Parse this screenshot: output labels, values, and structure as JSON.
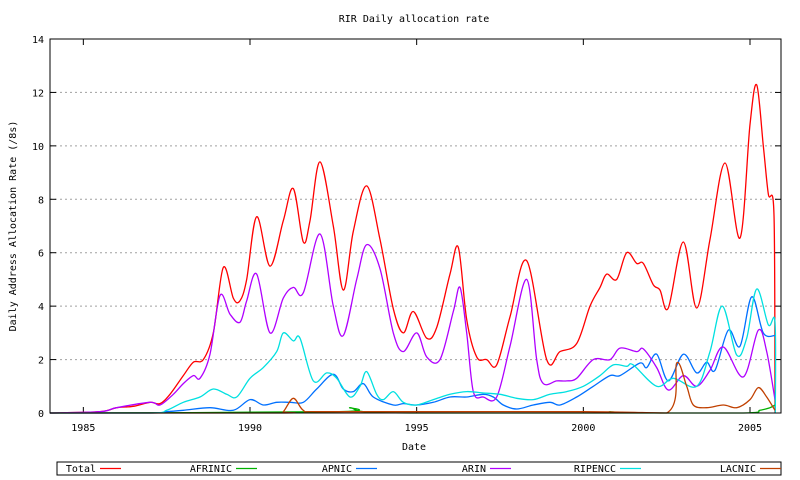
{
  "chart_data": {
    "type": "line",
    "title": "RIR Daily allocation rate",
    "xlabel": "Date",
    "ylabel": "Daily Address Allocation Rate (/8s)",
    "xlim": [
      1984.0,
      2005.93
    ],
    "ylim": [
      0,
      14
    ],
    "xticks": [
      1985,
      1990,
      1995,
      2000,
      2005
    ],
    "yticks": [
      0,
      2,
      4,
      6,
      8,
      10,
      12,
      14
    ],
    "grid": "horizontal dotted",
    "legend_placement": "bottom",
    "series": [
      {
        "name": "Total",
        "color": "#ff0000",
        "points": [
          [
            1984,
            0
          ],
          [
            1985.5,
            0.05
          ],
          [
            1986,
            0.2
          ],
          [
            1986.5,
            0.25
          ],
          [
            1987,
            0.4
          ],
          [
            1987.3,
            0.35
          ],
          [
            1987.6,
            0.7
          ],
          [
            1988,
            1.4
          ],
          [
            1988.3,
            1.9
          ],
          [
            1988.6,
            2.0
          ],
          [
            1988.9,
            3.0
          ],
          [
            1989.2,
            5.45
          ],
          [
            1989.5,
            4.3
          ],
          [
            1989.7,
            4.2
          ],
          [
            1989.9,
            5.0
          ],
          [
            1990.2,
            7.35
          ],
          [
            1990.6,
            5.5
          ],
          [
            1991.0,
            7.2
          ],
          [
            1991.3,
            8.4
          ],
          [
            1991.6,
            6.4
          ],
          [
            1991.8,
            7.2
          ],
          [
            1992.1,
            9.4
          ],
          [
            1992.5,
            7.0
          ],
          [
            1992.8,
            4.6
          ],
          [
            1993.1,
            6.8
          ],
          [
            1993.5,
            8.5
          ],
          [
            1993.9,
            6.5
          ],
          [
            1994.3,
            3.9
          ],
          [
            1994.6,
            3.0
          ],
          [
            1994.9,
            3.8
          ],
          [
            1995.3,
            2.8
          ],
          [
            1995.6,
            3.2
          ],
          [
            1996.0,
            5.2
          ],
          [
            1996.25,
            6.2
          ],
          [
            1996.5,
            3.5
          ],
          [
            1996.8,
            2.1
          ],
          [
            1997.1,
            2.0
          ],
          [
            1997.4,
            1.8
          ],
          [
            1997.8,
            3.6
          ],
          [
            1998.3,
            5.7
          ],
          [
            1998.9,
            2.0
          ],
          [
            1999.3,
            2.3
          ],
          [
            1999.8,
            2.6
          ],
          [
            2000.2,
            4.0
          ],
          [
            2000.5,
            4.7
          ],
          [
            2000.7,
            5.2
          ],
          [
            2001.0,
            5.0
          ],
          [
            2001.3,
            6.0
          ],
          [
            2001.6,
            5.6
          ],
          [
            2001.8,
            5.6
          ],
          [
            2002.1,
            4.8
          ],
          [
            2002.3,
            4.6
          ],
          [
            2002.55,
            3.93
          ],
          [
            2003.0,
            6.4
          ],
          [
            2003.4,
            3.93
          ],
          [
            2003.8,
            6.5
          ],
          [
            2004.25,
            9.36
          ],
          [
            2004.7,
            6.55
          ],
          [
            2005.0,
            10.8
          ],
          [
            2005.2,
            12.28
          ],
          [
            2005.4,
            10.0
          ],
          [
            2005.55,
            8.2
          ],
          [
            2005.72,
            7.4
          ],
          [
            2005.75,
            0
          ]
        ]
      },
      {
        "name": "AFRINIC",
        "color": "#00b000",
        "points": [
          [
            1984,
            0
          ],
          [
            1992.5,
            0.05
          ],
          [
            1993.0,
            0.2
          ],
          [
            1993.4,
            0.05
          ],
          [
            1995,
            0
          ],
          [
            2000.5,
            0
          ],
          [
            2000.8,
            0.05
          ],
          [
            2001.1,
            0
          ],
          [
            2004.8,
            0
          ],
          [
            2005.3,
            0.1
          ],
          [
            2005.6,
            0.2
          ],
          [
            2005.75,
            0.3
          ]
        ]
      },
      {
        "name": "APNIC",
        "color": "#0070ff",
        "points": [
          [
            1984,
            0
          ],
          [
            1987,
            0
          ],
          [
            1987.5,
            0.05
          ],
          [
            1988,
            0.1
          ],
          [
            1988.8,
            0.2
          ],
          [
            1989.5,
            0.1
          ],
          [
            1990,
            0.5
          ],
          [
            1990.4,
            0.3
          ],
          [
            1990.8,
            0.4
          ],
          [
            1991.2,
            0.4
          ],
          [
            1991.6,
            0.4
          ],
          [
            1992,
            0.9
          ],
          [
            1992.5,
            1.45
          ],
          [
            1992.8,
            0.9
          ],
          [
            1993.1,
            0.8
          ],
          [
            1993.4,
            1.1
          ],
          [
            1993.7,
            0.6
          ],
          [
            1994.3,
            0.3
          ],
          [
            1994.6,
            0.35
          ],
          [
            1995,
            0.3
          ],
          [
            1995.5,
            0.4
          ],
          [
            1996,
            0.6
          ],
          [
            1996.5,
            0.6
          ],
          [
            1997,
            0.7
          ],
          [
            1997.3,
            0.6
          ],
          [
            1997.6,
            0.3
          ],
          [
            1998,
            0.15
          ],
          [
            1998.5,
            0.3
          ],
          [
            1999,
            0.4
          ],
          [
            1999.3,
            0.3
          ],
          [
            1999.8,
            0.6
          ],
          [
            2000.3,
            1.0
          ],
          [
            2000.8,
            1.4
          ],
          [
            2001.1,
            1.4
          ],
          [
            2001.7,
            1.87
          ],
          [
            2001.9,
            1.7
          ],
          [
            2002.2,
            2.2
          ],
          [
            2002.55,
            1.2
          ],
          [
            2003.0,
            2.2
          ],
          [
            2003.4,
            1.5
          ],
          [
            2003.7,
            1.9
          ],
          [
            2003.95,
            1.6
          ],
          [
            2004.35,
            3.1
          ],
          [
            2004.7,
            2.5
          ],
          [
            2005.05,
            4.35
          ],
          [
            2005.4,
            3.0
          ],
          [
            2005.75,
            2.9
          ]
        ]
      },
      {
        "name": "ARIN",
        "color": "#b000ff",
        "points": [
          [
            1984,
            0
          ],
          [
            1985.5,
            0.05
          ],
          [
            1986,
            0.2
          ],
          [
            1987,
            0.4
          ],
          [
            1987.3,
            0.3
          ],
          [
            1987.7,
            0.7
          ],
          [
            1988,
            1.1
          ],
          [
            1988.3,
            1.4
          ],
          [
            1988.5,
            1.3
          ],
          [
            1988.8,
            2.2
          ],
          [
            1989.1,
            4.4
          ],
          [
            1989.4,
            3.7
          ],
          [
            1989.7,
            3.4
          ],
          [
            1989.9,
            4.2
          ],
          [
            1990.2,
            5.2
          ],
          [
            1990.6,
            3.0
          ],
          [
            1991.0,
            4.3
          ],
          [
            1991.3,
            4.7
          ],
          [
            1991.6,
            4.5
          ],
          [
            1992.1,
            6.7
          ],
          [
            1992.5,
            4.0
          ],
          [
            1992.8,
            2.9
          ],
          [
            1993.2,
            5.0
          ],
          [
            1993.5,
            6.3
          ],
          [
            1993.9,
            5.4
          ],
          [
            1994.3,
            3.0
          ],
          [
            1994.6,
            2.3
          ],
          [
            1995.0,
            3.0
          ],
          [
            1995.3,
            2.1
          ],
          [
            1995.7,
            2.0
          ],
          [
            1996.1,
            3.8
          ],
          [
            1996.3,
            4.7
          ],
          [
            1996.5,
            3.0
          ],
          [
            1996.7,
            0.8
          ],
          [
            1997.0,
            0.6
          ],
          [
            1997.4,
            0.6
          ],
          [
            1997.8,
            2.5
          ],
          [
            1998.3,
            5.0
          ],
          [
            1998.6,
            2.0
          ],
          [
            1998.8,
            1.1
          ],
          [
            1999.2,
            1.2
          ],
          [
            1999.5,
            1.2
          ],
          [
            1999.8,
            1.3
          ],
          [
            2000.3,
            2.0
          ],
          [
            2000.8,
            2.0
          ],
          [
            2001.1,
            2.43
          ],
          [
            2001.6,
            2.3
          ],
          [
            2001.8,
            2.4
          ],
          [
            2002.2,
            1.7
          ],
          [
            2002.55,
            0.86
          ],
          [
            2003.0,
            1.4
          ],
          [
            2003.4,
            1.0
          ],
          [
            2003.8,
            1.6
          ],
          [
            2004.2,
            2.47
          ],
          [
            2004.8,
            1.35
          ],
          [
            2005.25,
            3.1
          ],
          [
            2005.5,
            2.3
          ],
          [
            2005.75,
            0.5
          ]
        ]
      },
      {
        "name": "RIPENCC",
        "color": "#00e0e0",
        "points": [
          [
            1984,
            0
          ],
          [
            1987,
            0
          ],
          [
            1987.5,
            0.1
          ],
          [
            1988,
            0.4
          ],
          [
            1988.5,
            0.6
          ],
          [
            1988.9,
            0.9
          ],
          [
            1989.3,
            0.7
          ],
          [
            1989.6,
            0.6
          ],
          [
            1990,
            1.3
          ],
          [
            1990.4,
            1.7
          ],
          [
            1990.8,
            2.3
          ],
          [
            1991.0,
            3.0
          ],
          [
            1991.3,
            2.7
          ],
          [
            1991.5,
            2.8
          ],
          [
            1991.9,
            1.2
          ],
          [
            1992.3,
            1.5
          ],
          [
            1992.6,
            1.3
          ],
          [
            1993.0,
            0.6
          ],
          [
            1993.3,
            1.0
          ],
          [
            1993.5,
            1.55
          ],
          [
            1993.8,
            0.7
          ],
          [
            1994.0,
            0.5
          ],
          [
            1994.3,
            0.8
          ],
          [
            1994.6,
            0.4
          ],
          [
            1995,
            0.3
          ],
          [
            1995.5,
            0.5
          ],
          [
            1996,
            0.7
          ],
          [
            1996.5,
            0.8
          ],
          [
            1997,
            0.75
          ],
          [
            1997.5,
            0.7
          ],
          [
            1998,
            0.55
          ],
          [
            1998.5,
            0.5
          ],
          [
            1999,
            0.7
          ],
          [
            1999.5,
            0.8
          ],
          [
            2000,
            1.0
          ],
          [
            2000.5,
            1.4
          ],
          [
            2000.9,
            1.8
          ],
          [
            2001.3,
            1.75
          ],
          [
            2001.5,
            1.8
          ],
          [
            2002.2,
            1.0
          ],
          [
            2002.7,
            1.3
          ],
          [
            2003.4,
            1.0
          ],
          [
            2003.8,
            2.3
          ],
          [
            2004.17,
            4.0
          ],
          [
            2004.6,
            2.17
          ],
          [
            2004.9,
            2.8
          ],
          [
            2005.2,
            4.64
          ],
          [
            2005.55,
            3.3
          ],
          [
            2005.75,
            3.4
          ],
          [
            2005.76,
            0
          ]
        ]
      },
      {
        "name": "LACNIC",
        "color": "#c04000",
        "points": [
          [
            1984,
            0
          ],
          [
            1990.8,
            0
          ],
          [
            1991.0,
            0.05
          ],
          [
            1991.3,
            0.55
          ],
          [
            1991.6,
            0.1
          ],
          [
            1992,
            0.05
          ],
          [
            1995,
            0.05
          ],
          [
            2000,
            0.05
          ],
          [
            2002.5,
            0
          ],
          [
            2002.8,
            1.87
          ],
          [
            2003.1,
            1.0
          ],
          [
            2003.3,
            0.3
          ],
          [
            2003.7,
            0.2
          ],
          [
            2004.2,
            0.3
          ],
          [
            2004.6,
            0.2
          ],
          [
            2005.0,
            0.5
          ],
          [
            2005.25,
            0.95
          ],
          [
            2005.5,
            0.6
          ],
          [
            2005.75,
            0.1
          ]
        ]
      }
    ]
  }
}
